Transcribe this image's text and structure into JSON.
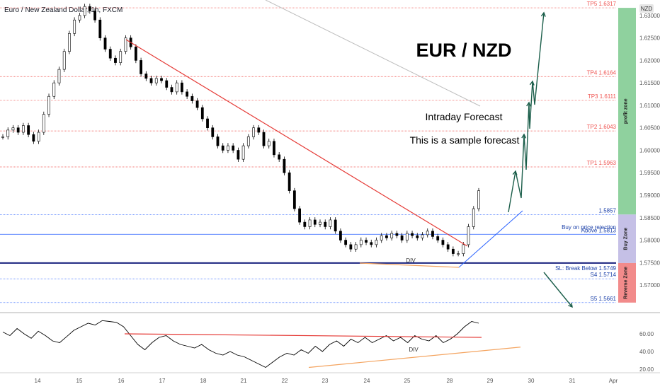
{
  "header": {
    "symbol_title": "Euro / New Zealand Dollar, 1h, FXCM",
    "currency_badge": "NZD"
  },
  "annotations": {
    "headline": "EUR / NZD",
    "subtitle1": "Intraday Forecast",
    "subtitle2": "This is a sample forecast",
    "div_label_price": "DIV",
    "div_label_rsi": "DIV"
  },
  "zones": {
    "profit": "profit zone",
    "buy": "Buy Zone",
    "reverse": "Reverse Zone"
  },
  "colors": {
    "up": "#26a69a",
    "down": "#ef5350",
    "candle": "#000000",
    "target_line": "#ef5350",
    "support_line": "#2962ff",
    "trendline": "#e53935",
    "arrow": "#1b5e4a",
    "profit_zone": "#8fd19e",
    "buy_zone": "#c5c0e6",
    "reverse_zone": "#f28b8b",
    "rsi_line": "#000000",
    "div_line": "#f4a460"
  },
  "chart_data": [
    {
      "type": "line",
      "title": "Euro / New Zealand Dollar, 1h, FXCM",
      "x_ticks": [
        "14",
        "15",
        "16",
        "17",
        "18",
        "21",
        "22",
        "23",
        "24",
        "25",
        "28",
        "29",
        "30",
        "31",
        "Apr"
      ],
      "y_ticks": [
        "1.57000",
        "1.57500",
        "1.58000",
        "1.58500",
        "1.59000",
        "1.59500",
        "1.60000",
        "1.60500",
        "1.61000",
        "1.61500",
        "1.62000",
        "1.62500",
        "1.63000"
      ],
      "ylim": [
        1.5645,
        1.6325
      ],
      "series": [
        {
          "values": [
            1.603,
            1.6045,
            1.605,
            1.604,
            1.6055,
            1.6035,
            1.602,
            1.604,
            1.608,
            1.612,
            1.615,
            1.618,
            1.622,
            1.626,
            1.629,
            1.63,
            1.632,
            1.631,
            1.629,
            1.625,
            1.6225,
            1.6205,
            1.6195,
            1.622,
            1.625,
            1.623,
            1.62,
            1.617,
            1.616,
            1.615,
            1.616,
            1.6155,
            1.614,
            1.613,
            1.615,
            1.613,
            1.612,
            1.611,
            1.6095,
            1.607,
            1.605,
            1.603,
            1.601,
            1.6,
            1.601,
            1.6,
            1.598,
            1.601,
            1.603,
            1.605,
            1.604,
            1.601,
            1.602,
            1.599,
            1.598,
            1.595,
            1.591,
            1.587,
            1.584,
            1.583,
            1.5845,
            1.5835,
            1.584,
            1.583,
            1.5845,
            1.582,
            1.58,
            1.579,
            1.578,
            1.579,
            1.58,
            1.5795,
            1.579,
            1.58,
            1.581,
            1.5805,
            1.5815,
            1.581,
            1.58,
            1.5815,
            1.581,
            1.5805,
            1.5812,
            1.582,
            1.5808,
            1.58,
            1.579,
            1.578,
            1.577,
            1.577,
            1.579,
            1.583,
            1.587,
            1.591
          ]
        }
      ],
      "levels": [
        {
          "label": "TP5 1.6317",
          "value": 1.6317,
          "kind": "target"
        },
        {
          "label": "TP4 1.6164",
          "value": 1.6164,
          "kind": "target"
        },
        {
          "label": "TP3 1.6111",
          "value": 1.6111,
          "kind": "target"
        },
        {
          "label": "TP2 1.6043",
          "value": 1.6043,
          "kind": "target"
        },
        {
          "label": "TP1 1.5963",
          "value": 1.5963,
          "kind": "target"
        },
        {
          "label": "1.5857",
          "value": 1.5857,
          "kind": "entry"
        },
        {
          "label": "Buy on price rejection",
          "value": 1.58195,
          "kind": "note"
        },
        {
          "label": "Above 1.5813",
          "value": 1.5813,
          "kind": "entry"
        },
        {
          "label": "SL: Break Below 1.5749",
          "value": 1.5749,
          "kind": "stop"
        },
        {
          "label": "S4 1.5714",
          "value": 1.5714,
          "kind": "support"
        },
        {
          "label": "S5 1.5661",
          "value": 1.5661,
          "kind": "support"
        }
      ]
    },
    {
      "type": "line",
      "title": "RSI",
      "ylim": [
        20,
        80
      ],
      "y_ticks": [
        "20.00",
        "40.00",
        "60.00"
      ],
      "series": [
        {
          "values": [
            62,
            58,
            66,
            60,
            55,
            63,
            58,
            52,
            50,
            57,
            64,
            68,
            72,
            70,
            75,
            74,
            73,
            68,
            58,
            48,
            42,
            50,
            56,
            58,
            52,
            48,
            46,
            44,
            48,
            42,
            38,
            36,
            40,
            36,
            34,
            30,
            26,
            22,
            28,
            34,
            38,
            36,
            42,
            38,
            46,
            40,
            48,
            52,
            46,
            54,
            50,
            56,
            50,
            54,
            58,
            52,
            56,
            50,
            58,
            54,
            52,
            58,
            50,
            54,
            60,
            68,
            74,
            72
          ]
        }
      ]
    }
  ]
}
